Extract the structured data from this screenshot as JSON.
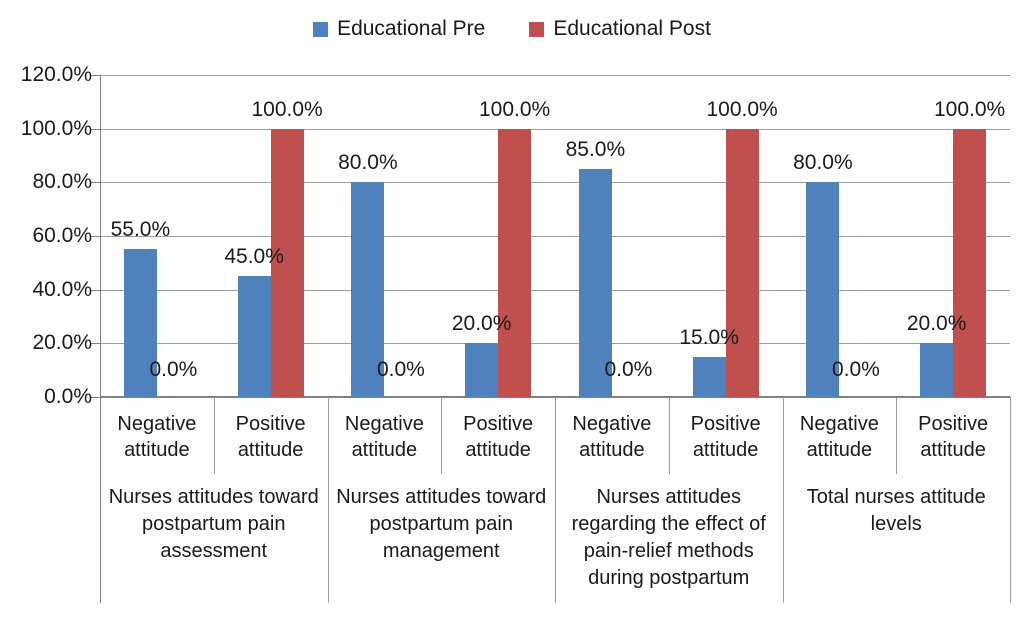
{
  "chart_data": {
    "type": "bar",
    "title": "",
    "xlabel": "",
    "ylabel": "",
    "grid": true,
    "legend_position": "top",
    "y_axis": {
      "min": 0,
      "max": 120,
      "step": 20,
      "tick_labels": [
        "0.0%",
        "20.0%",
        "40.0%",
        "60.0%",
        "80.0%",
        "100.0%",
        "120.0%"
      ]
    },
    "groups": [
      {
        "label": "Nurses attitudes toward postpartum pain assessment",
        "categories": [
          "Negative attitude",
          "Positive attitude"
        ]
      },
      {
        "label": "Nurses attitudes toward postpartum pain management",
        "categories": [
          "Negative attitude",
          "Positive attitude"
        ]
      },
      {
        "label": "Nurses attitudes regarding the effect of pain-relief methods during postpartum",
        "categories": [
          "Negative attitude",
          "Positive attitude"
        ]
      },
      {
        "label": "Total nurses attitude levels",
        "categories": [
          "Negative attitude",
          "Positive attitude"
        ]
      }
    ],
    "series": [
      {
        "name": "Educational Pre",
        "color": "#4F81BD",
        "values": [
          55.0,
          45.0,
          80.0,
          20.0,
          85.0,
          15.0,
          80.0,
          20.0
        ],
        "labels": [
          "55.0%",
          "45.0%",
          "80.0%",
          "20.0%",
          "85.0%",
          "15.0%",
          "80.0%",
          "20.0%"
        ]
      },
      {
        "name": "Educational Post",
        "color": "#C0504D",
        "values": [
          0.0,
          100.0,
          0.0,
          100.0,
          0.0,
          100.0,
          0.0,
          100.0
        ],
        "labels": [
          "0.0%",
          "100.0%",
          "0.0%",
          "100.0%",
          "0.0%",
          "100.0%",
          "0.0%",
          "100.0%"
        ]
      }
    ],
    "colors": {
      "grid": "#9d9d9d",
      "axis": "#808080",
      "text": "#1a1a1a"
    }
  }
}
